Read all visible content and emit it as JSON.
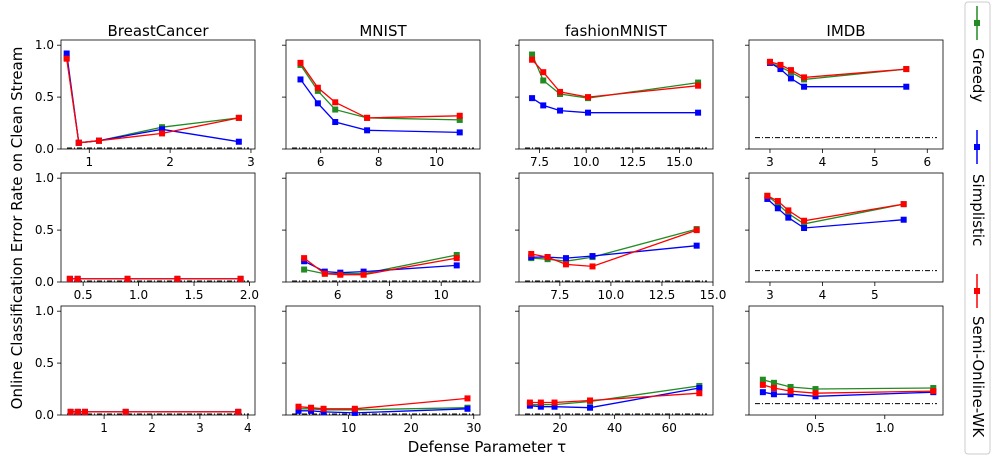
{
  "figure": {
    "ylabel": "Online Classification Error Rate on Clean Stream",
    "xlabel": "Defense Parameter τ",
    "legend": [
      {
        "name": "Greedy",
        "color": "#228b22"
      },
      {
        "name": "Simplistic",
        "color": "#0000ff"
      },
      {
        "name": "Semi-Online-WK",
        "color": "#ff0000"
      }
    ]
  },
  "chart_data": [
    {
      "type": "line",
      "title": "BreastCancer",
      "row": 0,
      "col": 0,
      "xlim": [
        0.65,
        3.05
      ],
      "ylim": [
        0,
        1.05
      ],
      "xticks": [
        1,
        2,
        3
      ],
      "xtick_labels": [
        "1",
        "2",
        "3"
      ],
      "yticks": [
        0,
        0.5,
        1.0
      ],
      "ytick_labels": [
        "0.0",
        "0.5",
        "1.0"
      ],
      "baseline": 0.0,
      "series": [
        {
          "name": "Greedy",
          "x": [
            0.72,
            0.87,
            1.12,
            1.9,
            2.85
          ],
          "y": [
            0.88,
            0.06,
            0.08,
            0.21,
            0.3
          ]
        },
        {
          "name": "Simplistic",
          "x": [
            0.72,
            0.87,
            1.12,
            1.9,
            2.85
          ],
          "y": [
            0.92,
            0.06,
            0.08,
            0.19,
            0.07
          ]
        },
        {
          "name": "Semi-Online-WK",
          "x": [
            0.72,
            0.87,
            1.12,
            1.9,
            2.85
          ],
          "y": [
            0.87,
            0.06,
            0.08,
            0.15,
            0.3
          ]
        }
      ]
    },
    {
      "type": "line",
      "title": "MNIST",
      "row": 0,
      "col": 1,
      "xlim": [
        4.8,
        11.5
      ],
      "ylim": [
        0,
        1.05
      ],
      "xticks": [
        6,
        8,
        10
      ],
      "xtick_labels": [
        "6",
        "8",
        "10"
      ],
      "yticks": [
        0,
        0.5,
        1.0
      ],
      "ytick_labels": [],
      "baseline": 0.0,
      "series": [
        {
          "name": "Greedy",
          "x": [
            5.3,
            5.9,
            6.5,
            7.6,
            10.8
          ],
          "y": [
            0.81,
            0.56,
            0.38,
            0.3,
            0.28
          ]
        },
        {
          "name": "Simplistic",
          "x": [
            5.3,
            5.9,
            6.5,
            7.6,
            10.8
          ],
          "y": [
            0.67,
            0.44,
            0.26,
            0.18,
            0.16
          ]
        },
        {
          "name": "Semi-Online-WK",
          "x": [
            5.3,
            5.9,
            6.5,
            7.6,
            10.8
          ],
          "y": [
            0.83,
            0.59,
            0.45,
            0.3,
            0.32
          ]
        }
      ]
    },
    {
      "type": "line",
      "title": "fashionMNIST",
      "row": 0,
      "col": 2,
      "xlim": [
        6.4,
        16.8
      ],
      "ylim": [
        0,
        1.05
      ],
      "xticks": [
        7.5,
        10,
        12.5,
        15
      ],
      "xtick_labels": [
        "7.5",
        "10.0",
        "12.5",
        "15.0"
      ],
      "yticks": [
        0,
        0.5,
        1.0
      ],
      "ytick_labels": [],
      "baseline": 0.0,
      "series": [
        {
          "name": "Greedy",
          "x": [
            7.1,
            7.7,
            8.6,
            10.1,
            16.0
          ],
          "y": [
            0.91,
            0.66,
            0.53,
            0.49,
            0.64
          ]
        },
        {
          "name": "Simplistic",
          "x": [
            7.1,
            7.7,
            8.6,
            10.1,
            16.0
          ],
          "y": [
            0.49,
            0.42,
            0.37,
            0.35,
            0.35
          ]
        },
        {
          "name": "Semi-Online-WK",
          "x": [
            7.1,
            7.7,
            8.6,
            10.1,
            16.0
          ],
          "y": [
            0.86,
            0.74,
            0.55,
            0.5,
            0.61
          ]
        }
      ]
    },
    {
      "type": "line",
      "title": "IMDB",
      "row": 0,
      "col": 3,
      "xlim": [
        2.6,
        6.3
      ],
      "ylim": [
        0,
        1.05
      ],
      "xticks": [
        3,
        4,
        5,
        6
      ],
      "xtick_labels": [
        "3",
        "4",
        "5",
        "6"
      ],
      "yticks": [
        0,
        0.5,
        1.0
      ],
      "ytick_labels": [],
      "baseline": 0.11,
      "series": [
        {
          "name": "Greedy",
          "x": [
            3.0,
            3.2,
            3.4,
            3.65,
            5.6
          ],
          "y": [
            0.83,
            0.79,
            0.74,
            0.67,
            0.77
          ]
        },
        {
          "name": "Simplistic",
          "x": [
            3.0,
            3.2,
            3.4,
            3.65,
            5.6
          ],
          "y": [
            0.83,
            0.77,
            0.68,
            0.6,
            0.6
          ]
        },
        {
          "name": "Semi-Online-WK",
          "x": [
            3.0,
            3.2,
            3.4,
            3.65,
            5.6
          ],
          "y": [
            0.84,
            0.81,
            0.76,
            0.69,
            0.77
          ]
        }
      ]
    },
    {
      "type": "line",
      "title": "",
      "row": 1,
      "col": 0,
      "xlim": [
        0.3,
        2.05
      ],
      "ylim": [
        0,
        1.05
      ],
      "xticks": [
        0.5,
        1.0,
        1.5,
        2.0
      ],
      "xtick_labels": [
        "0.5",
        "1.0",
        "1.5",
        "2.0"
      ],
      "yticks": [
        0,
        0.5,
        1.0
      ],
      "ytick_labels": [
        "0.0",
        "0.5",
        "1.0"
      ],
      "baseline": 0.0,
      "series": [
        {
          "name": "Greedy",
          "x": [
            0.38,
            0.45,
            0.9,
            1.35,
            1.92
          ],
          "y": [
            0.03,
            0.03,
            0.03,
            0.03,
            0.03
          ]
        },
        {
          "name": "Simplistic",
          "x": [
            0.38,
            0.45,
            0.9,
            1.35,
            1.92
          ],
          "y": [
            0.03,
            0.03,
            0.03,
            0.03,
            0.03
          ]
        },
        {
          "name": "Semi-Online-WK",
          "x": [
            0.38,
            0.45,
            0.9,
            1.35,
            1.92
          ],
          "y": [
            0.03,
            0.03,
            0.03,
            0.03,
            0.03
          ]
        }
      ]
    },
    {
      "type": "line",
      "title": "",
      "row": 1,
      "col": 1,
      "xlim": [
        4.0,
        11.5
      ],
      "ylim": [
        0,
        1.05
      ],
      "xticks": [
        6,
        8,
        10
      ],
      "xtick_labels": [
        "6",
        "8",
        "10"
      ],
      "yticks": [
        0,
        0.5,
        1.0
      ],
      "ytick_labels": [],
      "baseline": 0.0,
      "series": [
        {
          "name": "Greedy",
          "x": [
            4.7,
            5.5,
            6.1,
            7.0,
            10.6
          ],
          "y": [
            0.12,
            0.08,
            0.08,
            0.08,
            0.26
          ]
        },
        {
          "name": "Simplistic",
          "x": [
            4.7,
            5.5,
            6.1,
            7.0,
            10.6
          ],
          "y": [
            0.2,
            0.1,
            0.09,
            0.1,
            0.16
          ]
        },
        {
          "name": "Semi-Online-WK",
          "x": [
            4.7,
            5.5,
            6.1,
            7.0,
            10.6
          ],
          "y": [
            0.23,
            0.08,
            0.07,
            0.07,
            0.23
          ]
        }
      ]
    },
    {
      "type": "line",
      "title": "",
      "row": 1,
      "col": 2,
      "xlim": [
        5.5,
        15.0
      ],
      "ylim": [
        0,
        1.05
      ],
      "xticks": [
        7.5,
        10,
        12.5,
        15
      ],
      "xtick_labels": [
        "7.5",
        "10.0",
        "12.5",
        "15.0"
      ],
      "yticks": [
        0,
        0.5,
        1.0
      ],
      "ytick_labels": [],
      "baseline": 0.0,
      "series": [
        {
          "name": "Greedy",
          "x": [
            6.1,
            6.9,
            7.8,
            9.1,
            14.2
          ],
          "y": [
            0.23,
            0.22,
            0.2,
            0.24,
            0.51
          ]
        },
        {
          "name": "Simplistic",
          "x": [
            6.1,
            6.9,
            7.8,
            9.1,
            14.2
          ],
          "y": [
            0.24,
            0.24,
            0.23,
            0.25,
            0.35
          ]
        },
        {
          "name": "Semi-Online-WK",
          "x": [
            6.1,
            6.9,
            7.8,
            9.1,
            14.2
          ],
          "y": [
            0.27,
            0.24,
            0.17,
            0.15,
            0.5
          ]
        }
      ]
    },
    {
      "type": "line",
      "title": "",
      "row": 1,
      "col": 3,
      "xlim": [
        2.6,
        6.3
      ],
      "ylim": [
        0,
        1.05
      ],
      "xticks": [
        3,
        4,
        5
      ],
      "xtick_labels": [
        "3",
        "4",
        "5"
      ],
      "yticks": [
        0,
        0.5,
        1.0
      ],
      "ytick_labels": [],
      "baseline": 0.11,
      "series": [
        {
          "name": "Greedy",
          "x": [
            2.95,
            3.15,
            3.35,
            3.65,
            5.55
          ],
          "y": [
            0.83,
            0.75,
            0.66,
            0.56,
            0.75
          ]
        },
        {
          "name": "Simplistic",
          "x": [
            2.95,
            3.15,
            3.35,
            3.65,
            5.55
          ],
          "y": [
            0.8,
            0.71,
            0.62,
            0.52,
            0.6
          ]
        },
        {
          "name": "Semi-Online-WK",
          "x": [
            2.95,
            3.15,
            3.35,
            3.65,
            5.55
          ],
          "y": [
            0.83,
            0.78,
            0.69,
            0.59,
            0.75
          ]
        }
      ]
    },
    {
      "type": "line",
      "title": "",
      "row": 2,
      "col": 0,
      "xlim": [
        0.1,
        4.15
      ],
      "ylim": [
        0,
        1.05
      ],
      "xticks": [
        1,
        2,
        3,
        4
      ],
      "xtick_labels": [
        "1",
        "2",
        "3",
        "4"
      ],
      "yticks": [
        0,
        0.5,
        1.0
      ],
      "ytick_labels": [
        "0.0",
        "0.5",
        "1.0"
      ],
      "baseline": 0.0,
      "series": [
        {
          "name": "Greedy",
          "x": [
            0.3,
            0.45,
            0.6,
            1.45,
            3.8
          ],
          "y": [
            0.03,
            0.03,
            0.03,
            0.03,
            0.03
          ]
        },
        {
          "name": "Simplistic",
          "x": [
            0.3,
            0.45,
            0.6,
            1.45,
            3.8
          ],
          "y": [
            0.03,
            0.03,
            0.03,
            0.03,
            0.03
          ]
        },
        {
          "name": "Semi-Online-WK",
          "x": [
            0.3,
            0.45,
            0.6,
            1.45,
            3.8
          ],
          "y": [
            0.03,
            0.03,
            0.03,
            0.03,
            0.03
          ]
        }
      ]
    },
    {
      "type": "line",
      "title": "",
      "row": 2,
      "col": 1,
      "xlim": [
        0,
        31
      ],
      "ylim": [
        0,
        1.05
      ],
      "xticks": [
        10,
        20,
        30
      ],
      "xtick_labels": [
        "10",
        "20",
        "30"
      ],
      "yticks": [
        0,
        0.5,
        1.0
      ],
      "ytick_labels": [],
      "baseline": 0.0,
      "series": [
        {
          "name": "Greedy",
          "x": [
            2,
            4,
            6,
            11,
            29
          ],
          "y": [
            0.06,
            0.06,
            0.05,
            0.05,
            0.07
          ]
        },
        {
          "name": "Simplistic",
          "x": [
            2,
            4,
            6,
            11,
            29
          ],
          "y": [
            0.04,
            0.04,
            0.03,
            0.02,
            0.06
          ]
        },
        {
          "name": "Semi-Online-WK",
          "x": [
            2,
            4,
            6,
            11,
            29
          ],
          "y": [
            0.08,
            0.07,
            0.06,
            0.06,
            0.16
          ]
        }
      ]
    },
    {
      "type": "line",
      "title": "",
      "row": 2,
      "col": 2,
      "xlim": [
        5,
        76
      ],
      "ylim": [
        0,
        1.05
      ],
      "xticks": [
        20,
        40,
        60
      ],
      "xtick_labels": [
        "20",
        "40",
        "60"
      ],
      "yticks": [
        0,
        0.5,
        1.0
      ],
      "ytick_labels": [],
      "baseline": 0.0,
      "series": [
        {
          "name": "Greedy",
          "x": [
            9,
            13,
            18,
            31,
            71
          ],
          "y": [
            0.1,
            0.1,
            0.1,
            0.13,
            0.28
          ]
        },
        {
          "name": "Simplistic",
          "x": [
            9,
            13,
            18,
            31,
            71
          ],
          "y": [
            0.09,
            0.08,
            0.08,
            0.07,
            0.26
          ]
        },
        {
          "name": "Semi-Online-WK",
          "x": [
            9,
            13,
            18,
            31,
            71
          ],
          "y": [
            0.12,
            0.12,
            0.12,
            0.14,
            0.21
          ]
        }
      ]
    },
    {
      "type": "line",
      "title": "",
      "row": 2,
      "col": 3,
      "xlim": [
        0.02,
        1.42
      ],
      "ylim": [
        0,
        1.05
      ],
      "xticks": [
        0.5,
        1.0
      ],
      "xtick_labels": [
        "0.5",
        "1.0"
      ],
      "yticks": [
        0,
        0.5,
        1.0
      ],
      "ytick_labels": [],
      "baseline": 0.11,
      "series": [
        {
          "name": "Greedy",
          "x": [
            0.12,
            0.2,
            0.32,
            0.5,
            1.35
          ],
          "y": [
            0.34,
            0.31,
            0.27,
            0.25,
            0.26
          ]
        },
        {
          "name": "Simplistic",
          "x": [
            0.12,
            0.2,
            0.32,
            0.5,
            1.35
          ],
          "y": [
            0.22,
            0.2,
            0.2,
            0.18,
            0.22
          ]
        },
        {
          "name": "Semi-Online-WK",
          "x": [
            0.12,
            0.2,
            0.32,
            0.5,
            1.35
          ],
          "y": [
            0.29,
            0.26,
            0.23,
            0.21,
            0.23
          ]
        }
      ]
    }
  ]
}
